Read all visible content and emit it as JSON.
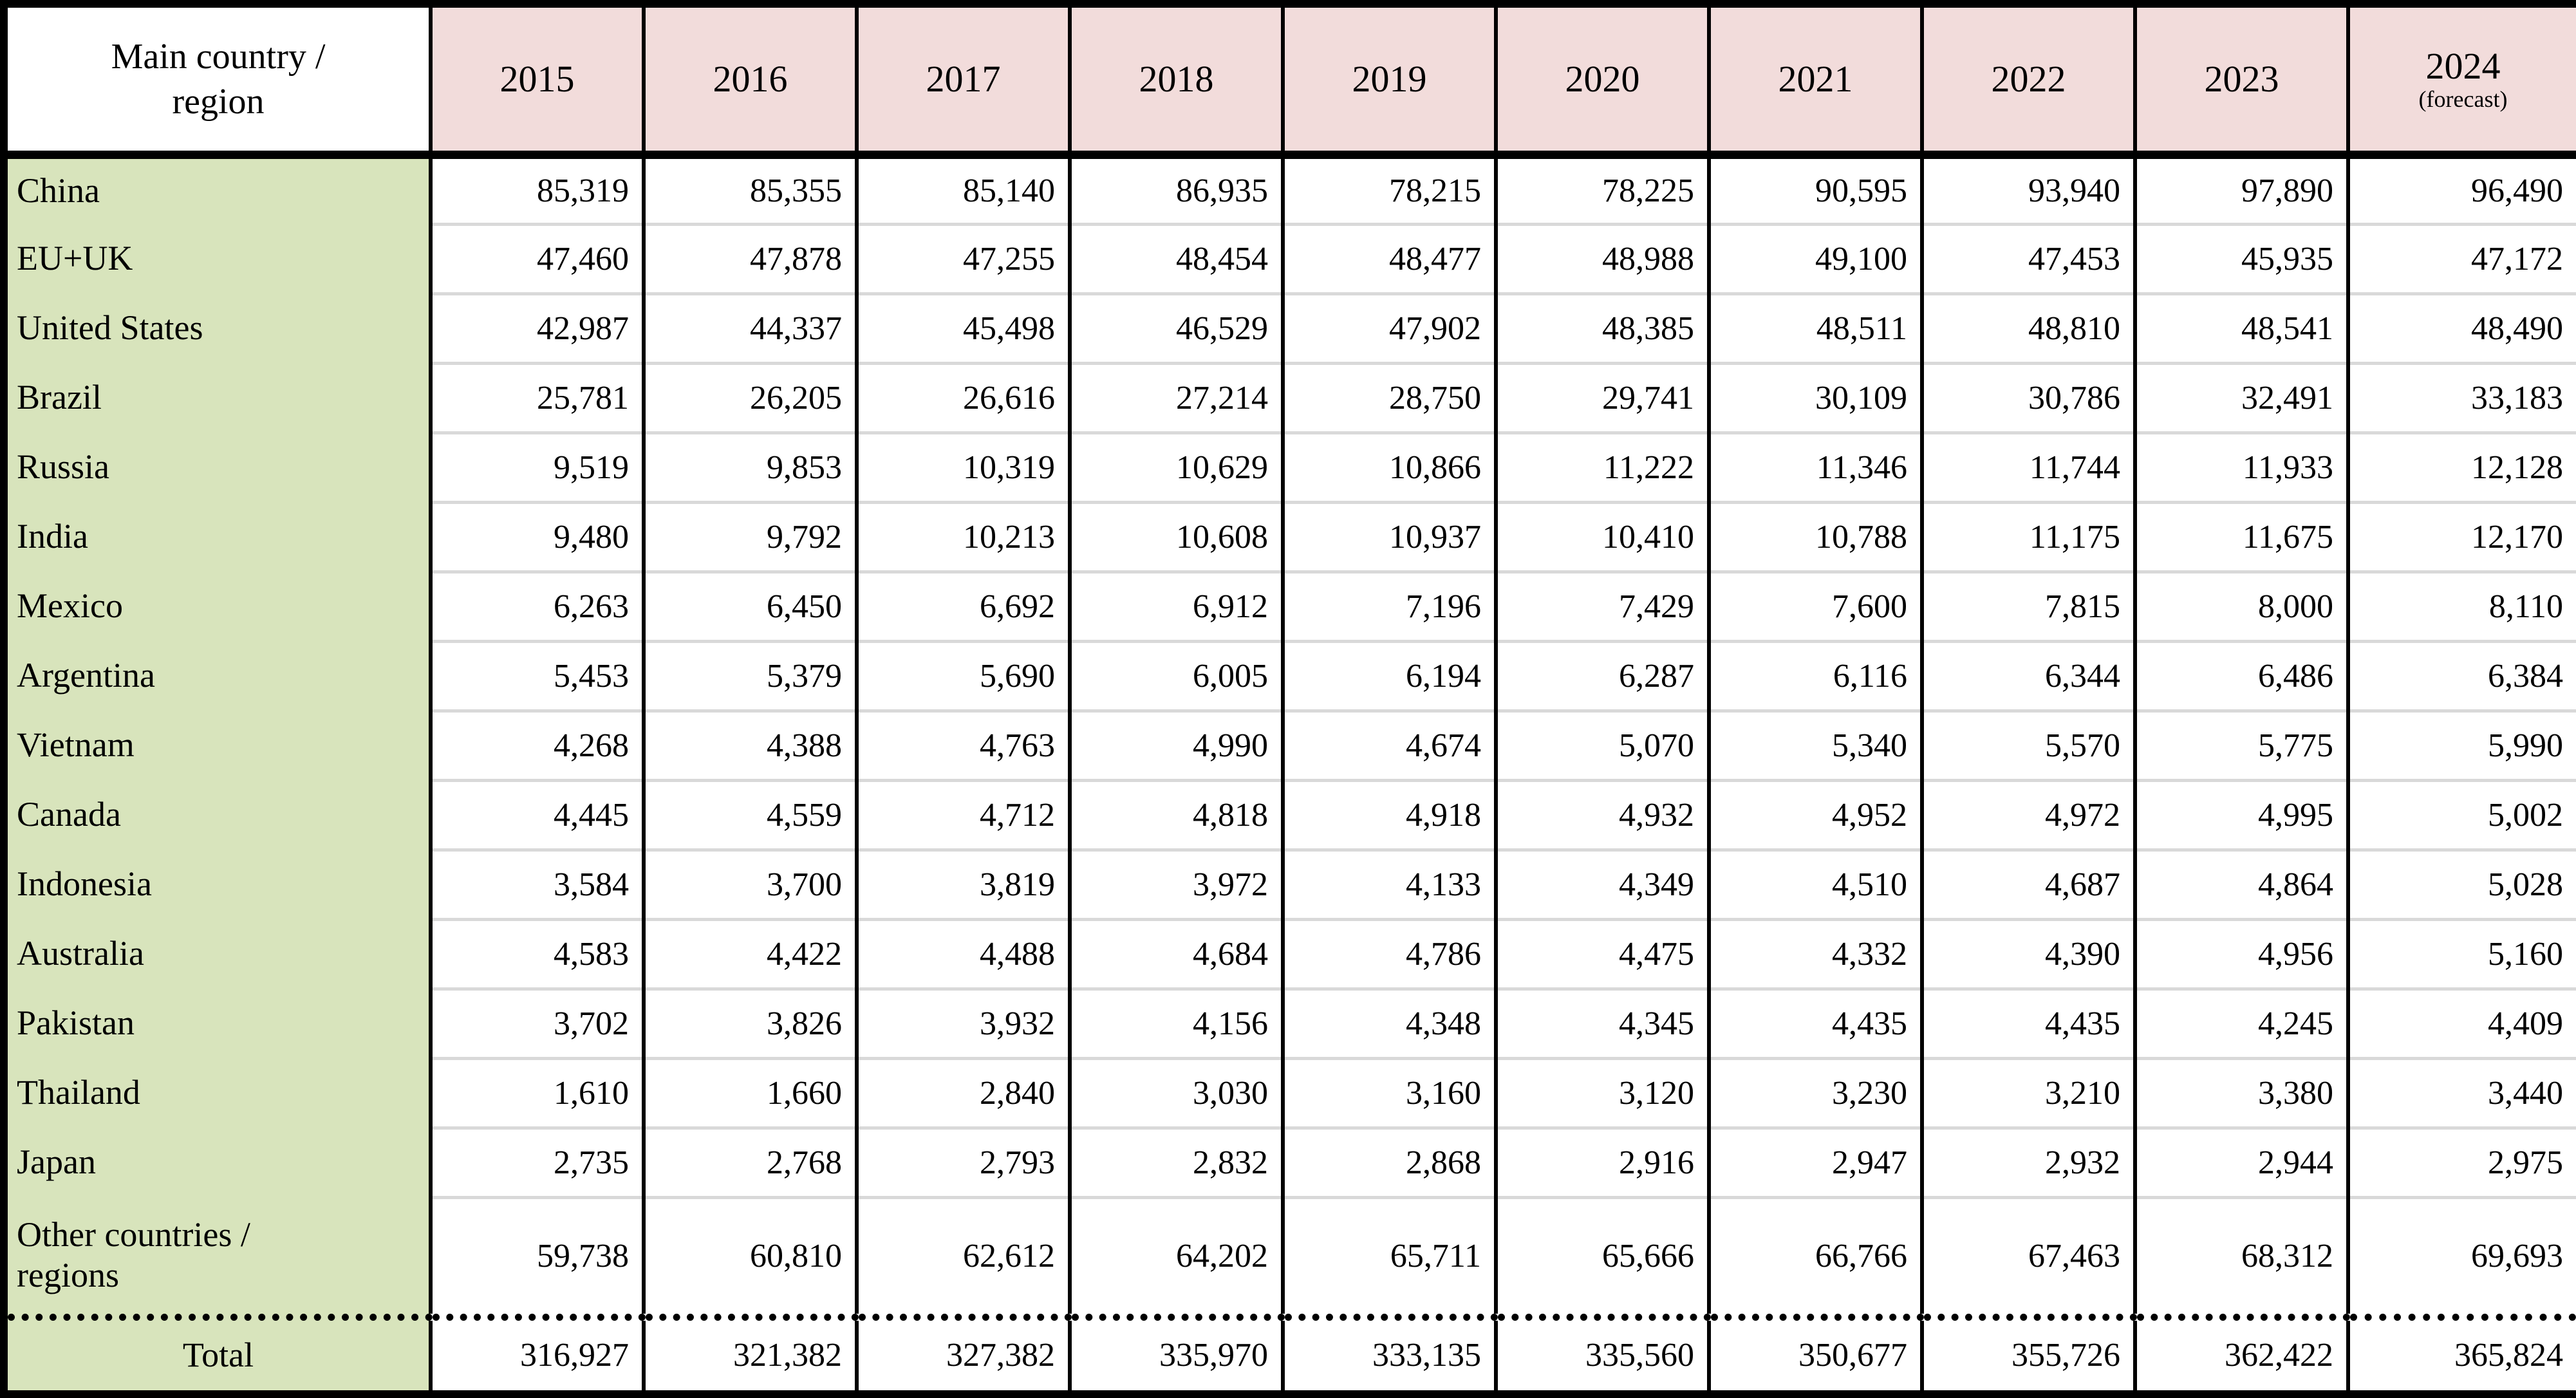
{
  "table": {
    "header": {
      "label": "Main country /\nregion",
      "years": [
        "2015",
        "2016",
        "2017",
        "2018",
        "2019",
        "2020",
        "2021",
        "2022",
        "2023"
      ],
      "forecast_year": "2024",
      "forecast_note": "(forecast)"
    },
    "rows": [
      {
        "label": "China",
        "values": [
          "85,319",
          "85,355",
          "85,140",
          "86,935",
          "78,215",
          "78,225",
          "90,595",
          "93,940",
          "97,890",
          "96,490"
        ]
      },
      {
        "label": "EU+UK",
        "values": [
          "47,460",
          "47,878",
          "47,255",
          "48,454",
          "48,477",
          "48,988",
          "49,100",
          "47,453",
          "45,935",
          "47,172"
        ]
      },
      {
        "label": "United States",
        "values": [
          "42,987",
          "44,337",
          "45,498",
          "46,529",
          "47,902",
          "48,385",
          "48,511",
          "48,810",
          "48,541",
          "48,490"
        ]
      },
      {
        "label": "Brazil",
        "values": [
          "25,781",
          "26,205",
          "26,616",
          "27,214",
          "28,750",
          "29,741",
          "30,109",
          "30,786",
          "32,491",
          "33,183"
        ]
      },
      {
        "label": "Russia",
        "values": [
          "9,519",
          "9,853",
          "10,319",
          "10,629",
          "10,866",
          "11,222",
          "11,346",
          "11,744",
          "11,933",
          "12,128"
        ]
      },
      {
        "label": "India",
        "values": [
          "9,480",
          "9,792",
          "10,213",
          "10,608",
          "10,937",
          "10,410",
          "10,788",
          "11,175",
          "11,675",
          "12,170"
        ]
      },
      {
        "label": "Mexico",
        "values": [
          "6,263",
          "6,450",
          "6,692",
          "6,912",
          "7,196",
          "7,429",
          "7,600",
          "7,815",
          "8,000",
          "8,110"
        ]
      },
      {
        "label": "Argentina",
        "values": [
          "5,453",
          "5,379",
          "5,690",
          "6,005",
          "6,194",
          "6,287",
          "6,116",
          "6,344",
          "6,486",
          "6,384"
        ]
      },
      {
        "label": "Vietnam",
        "values": [
          "4,268",
          "4,388",
          "4,763",
          "4,990",
          "4,674",
          "5,070",
          "5,340",
          "5,570",
          "5,775",
          "5,990"
        ]
      },
      {
        "label": "Canada",
        "values": [
          "4,445",
          "4,559",
          "4,712",
          "4,818",
          "4,918",
          "4,932",
          "4,952",
          "4,972",
          "4,995",
          "5,002"
        ]
      },
      {
        "label": "Indonesia",
        "values": [
          "3,584",
          "3,700",
          "3,819",
          "3,972",
          "4,133",
          "4,349",
          "4,510",
          "4,687",
          "4,864",
          "5,028"
        ]
      },
      {
        "label": "Australia",
        "values": [
          "4,583",
          "4,422",
          "4,488",
          "4,684",
          "4,786",
          "4,475",
          "4,332",
          "4,390",
          "4,956",
          "5,160"
        ]
      },
      {
        "label": "Pakistan",
        "values": [
          "3,702",
          "3,826",
          "3,932",
          "4,156",
          "4,348",
          "4,345",
          "4,435",
          "4,435",
          "4,245",
          "4,409"
        ]
      },
      {
        "label": "Thailand",
        "values": [
          "1,610",
          "1,660",
          "2,840",
          "3,030",
          "3,160",
          "3,120",
          "3,230",
          "3,210",
          "3,380",
          "3,440"
        ]
      },
      {
        "label": "Japan",
        "values": [
          "2,735",
          "2,768",
          "2,793",
          "2,832",
          "2,868",
          "2,916",
          "2,947",
          "2,932",
          "2,944",
          "2,975"
        ]
      },
      {
        "label": "Other countries /\nregions",
        "values": [
          "59,738",
          "60,810",
          "62,612",
          "64,202",
          "65,711",
          "65,666",
          "66,766",
          "67,463",
          "68,312",
          "69,693"
        ]
      }
    ],
    "total_row": {
      "label": "Total",
      "values": [
        "316,927",
        "321,382",
        "327,382",
        "335,970",
        "333,135",
        "335,560",
        "350,677",
        "355,726",
        "362,422",
        "365,824"
      ]
    }
  },
  "colors": {
    "header_pink": "#f2dcdb",
    "label_green": "#d8e4bc",
    "grid_gray": "#d9d9d9",
    "border_black": "#000000"
  },
  "chart_data": {
    "type": "table",
    "title": "Main country / region by year",
    "columns": [
      "Main country / region",
      "2015",
      "2016",
      "2017",
      "2018",
      "2019",
      "2020",
      "2021",
      "2022",
      "2023",
      "2024 (forecast)"
    ],
    "rows": [
      [
        "China",
        85319,
        85355,
        85140,
        86935,
        78215,
        78225,
        90595,
        93940,
        97890,
        96490
      ],
      [
        "EU+UK",
        47460,
        47878,
        47255,
        48454,
        48477,
        48988,
        49100,
        47453,
        45935,
        47172
      ],
      [
        "United States",
        42987,
        44337,
        45498,
        46529,
        47902,
        48385,
        48511,
        48810,
        48541,
        48490
      ],
      [
        "Brazil",
        25781,
        26205,
        26616,
        27214,
        28750,
        29741,
        30109,
        30786,
        32491,
        33183
      ],
      [
        "Russia",
        9519,
        9853,
        10319,
        10629,
        10866,
        11222,
        11346,
        11744,
        11933,
        12128
      ],
      [
        "India",
        9480,
        9792,
        10213,
        10608,
        10937,
        10410,
        10788,
        11175,
        11675,
        12170
      ],
      [
        "Mexico",
        6263,
        6450,
        6692,
        6912,
        7196,
        7429,
        7600,
        7815,
        8000,
        8110
      ],
      [
        "Argentina",
        5453,
        5379,
        5690,
        6005,
        6194,
        6287,
        6116,
        6344,
        6486,
        6384
      ],
      [
        "Vietnam",
        4268,
        4388,
        4763,
        4990,
        4674,
        5070,
        5340,
        5570,
        5775,
        5990
      ],
      [
        "Canada",
        4445,
        4559,
        4712,
        4818,
        4918,
        4932,
        4952,
        4972,
        4995,
        5002
      ],
      [
        "Indonesia",
        3584,
        3700,
        3819,
        3972,
        4133,
        4349,
        4510,
        4687,
        4864,
        5028
      ],
      [
        "Australia",
        4583,
        4422,
        4488,
        4684,
        4786,
        4475,
        4332,
        4390,
        4956,
        5160
      ],
      [
        "Pakistan",
        3702,
        3826,
        3932,
        4156,
        4348,
        4345,
        4435,
        4435,
        4245,
        4409
      ],
      [
        "Thailand",
        1610,
        1660,
        2840,
        3030,
        3160,
        3120,
        3230,
        3210,
        3380,
        3440
      ],
      [
        "Japan",
        2735,
        2768,
        2793,
        2832,
        2868,
        2916,
        2947,
        2932,
        2944,
        2975
      ],
      [
        "Other countries / regions",
        59738,
        60810,
        62612,
        64202,
        65711,
        65666,
        66766,
        67463,
        68312,
        69693
      ],
      [
        "Total",
        316927,
        321382,
        327382,
        335970,
        333135,
        335560,
        350677,
        355726,
        362422,
        365824
      ]
    ]
  }
}
